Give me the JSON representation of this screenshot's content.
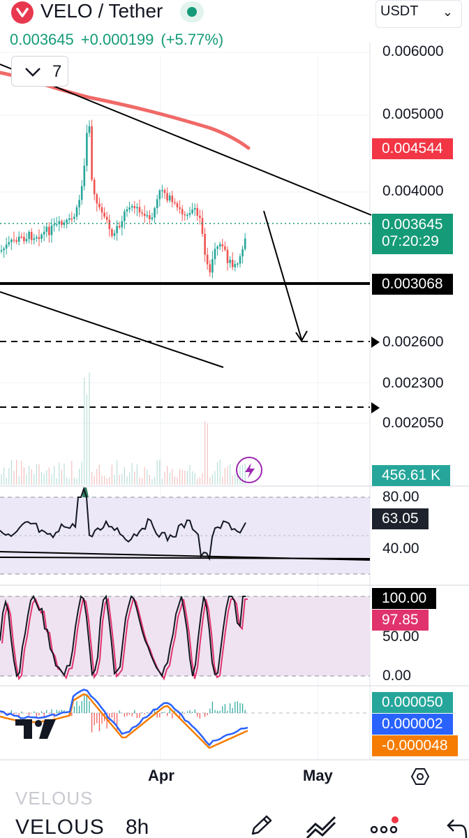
{
  "header": {
    "pair_title": "VELO / Tether",
    "last_price": "0.003645",
    "change_abs": "+0.000199",
    "change_pct": "(+5.77%)",
    "currency": "USDT",
    "indicators_collapsed_count": "7"
  },
  "price_axis": {
    "labels": [
      "0.006000",
      "0.005000",
      "0.004000",
      "0.002600",
      "0.002300",
      "0.002050"
    ],
    "ma_tag": "0.004544",
    "last_price_tag": "0.003645",
    "countdown": "07:20:29",
    "support_tag": "0.003068",
    "volume_tag": "456.61 K"
  },
  "rsi": {
    "labels": [
      "80.00",
      "40.00"
    ],
    "value_tag": "63.05"
  },
  "stoch": {
    "labels": [
      "50.00",
      "0.00"
    ],
    "k_tag": "100.00",
    "d_tag": "97.85"
  },
  "macd": {
    "histogram_tag": "0.000050",
    "macd_tag": "0.000002",
    "signal_tag": "-0.000048"
  },
  "time_axis": {
    "months": [
      "Apr",
      "May"
    ]
  },
  "bottom_bar": {
    "ghost_symbol": "VELOUS",
    "symbol": "VELOUS",
    "interval": "8h"
  },
  "colors": {
    "up": "#26a69a",
    "down": "#ef5350",
    "ma": "#f06a68",
    "rsi_bg": "#ece8f7",
    "stoch_bg": "#efe3f1",
    "macd_line": "#2962ff",
    "signal_line": "#f57c00"
  }
}
